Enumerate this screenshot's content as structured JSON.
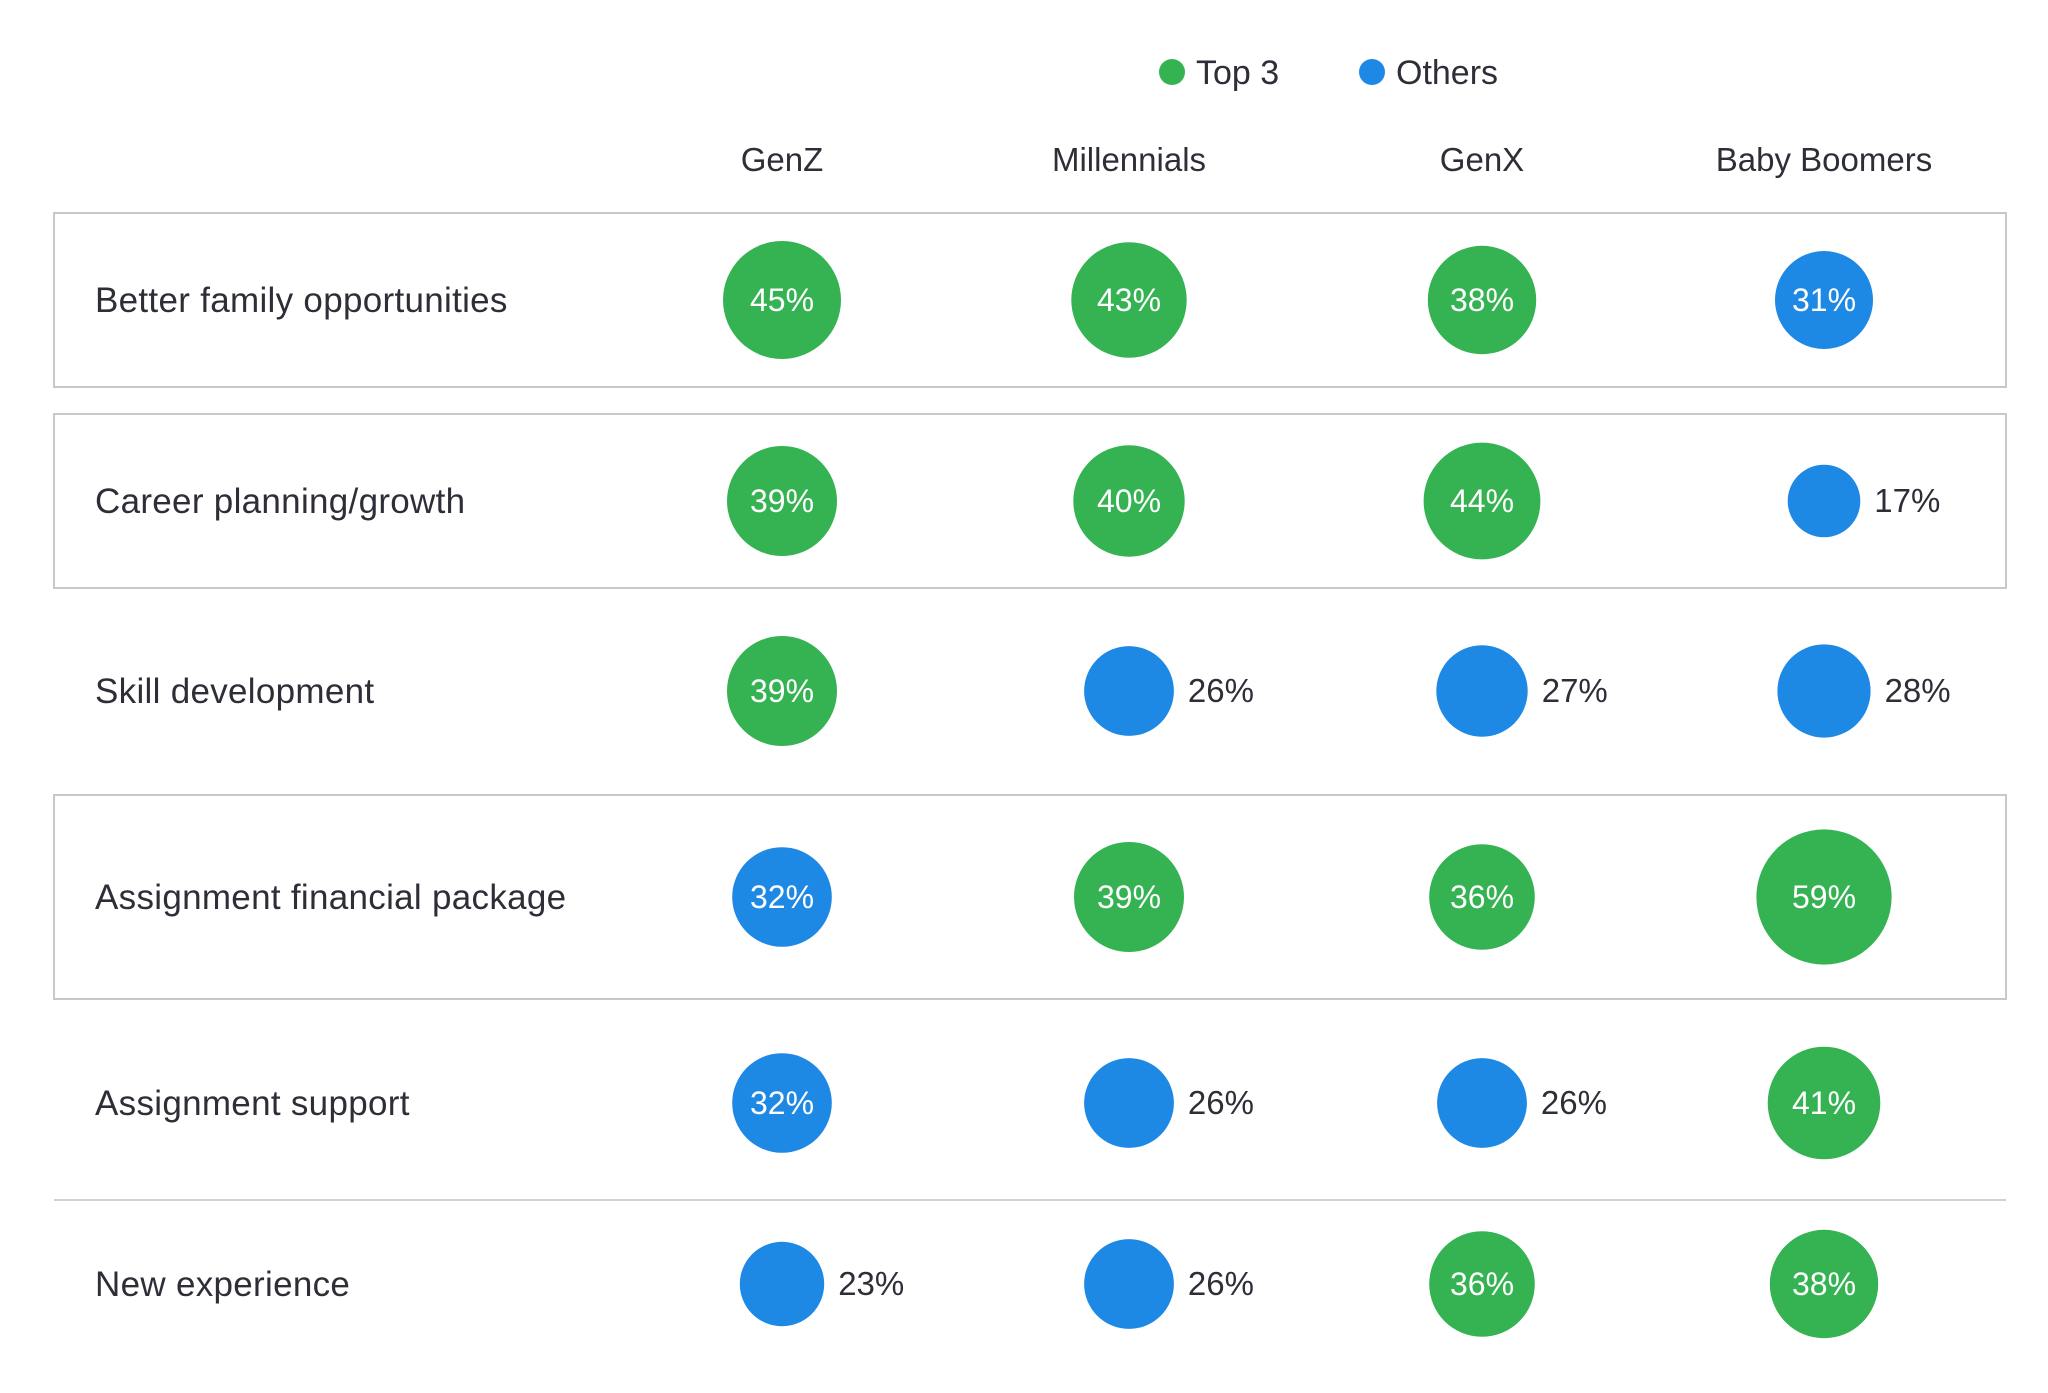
{
  "colors": {
    "top3": "#35b353",
    "others": "#1e88e5",
    "text": "#2e2e38",
    "border": "#c8c8c8",
    "divider": "#d2d2d2"
  },
  "legend": [
    {
      "key": "top3",
      "label": "Top 3"
    },
    {
      "key": "others",
      "label": "Others"
    }
  ],
  "chart_data": {
    "type": "bubble-matrix",
    "title": "",
    "columns": [
      "GenZ",
      "Millennials",
      "GenX",
      "Baby Boomers"
    ],
    "rows": [
      {
        "label": "Better family opportunities",
        "boxed": true,
        "cells": [
          {
            "value": 45,
            "label": "45%",
            "category": "top3"
          },
          {
            "value": 43,
            "label": "43%",
            "category": "top3"
          },
          {
            "value": 38,
            "label": "38%",
            "category": "top3"
          },
          {
            "value": 31,
            "label": "31%",
            "category": "others"
          }
        ]
      },
      {
        "label": "Career planning/growth",
        "boxed": true,
        "cells": [
          {
            "value": 39,
            "label": "39%",
            "category": "top3"
          },
          {
            "value": 40,
            "label": "40%",
            "category": "top3"
          },
          {
            "value": 44,
            "label": "44%",
            "category": "top3"
          },
          {
            "value": 17,
            "label": "17%",
            "category": "others"
          }
        ]
      },
      {
        "label": "Skill development",
        "boxed": false,
        "cells": [
          {
            "value": 39,
            "label": "39%",
            "category": "top3"
          },
          {
            "value": 26,
            "label": "26%",
            "category": "others"
          },
          {
            "value": 27,
            "label": "27%",
            "category": "others"
          },
          {
            "value": 28,
            "label": "28%",
            "category": "others"
          }
        ]
      },
      {
        "label": "Assignment financial package",
        "boxed": true,
        "cells": [
          {
            "value": 32,
            "label": "32%",
            "category": "others"
          },
          {
            "value": 39,
            "label": "39%",
            "category": "top3"
          },
          {
            "value": 36,
            "label": "36%",
            "category": "top3"
          },
          {
            "value": 59,
            "label": "59%",
            "category": "top3"
          }
        ]
      },
      {
        "label": "Assignment support",
        "boxed": false,
        "cells": [
          {
            "value": 32,
            "label": "32%",
            "category": "others"
          },
          {
            "value": 26,
            "label": "26%",
            "category": "others"
          },
          {
            "value": 26,
            "label": "26%",
            "category": "others"
          },
          {
            "value": 41,
            "label": "41%",
            "category": "top3"
          }
        ]
      },
      {
        "label": "New experience",
        "boxed": false,
        "cells": [
          {
            "value": 23,
            "label": "23%",
            "category": "others"
          },
          {
            "value": 26,
            "label": "26%",
            "category": "others"
          },
          {
            "value": 36,
            "label": "36%",
            "category": "top3"
          },
          {
            "value": 38,
            "label": "38%",
            "category": "top3"
          }
        ]
      }
    ]
  }
}
